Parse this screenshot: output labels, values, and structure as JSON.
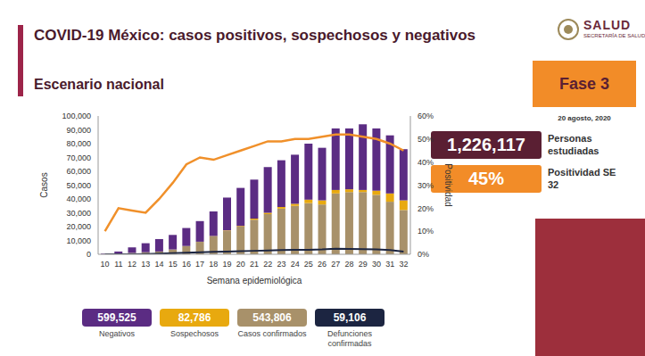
{
  "chart_data": {
    "type": "bar",
    "title": "COVID-19 México: casos positivos, sospechosos y negativos",
    "subtitle": "Escenario nacional",
    "x_label": "Semana epidemiológica",
    "y_label": "Casos",
    "y2_label": "Positividad",
    "stacked": true,
    "grid": false,
    "categories": [
      "10",
      "11",
      "12",
      "13",
      "14",
      "15",
      "16",
      "17",
      "18",
      "19",
      "20",
      "21",
      "22",
      "23",
      "24",
      "25",
      "26",
      "27",
      "28",
      "29",
      "30",
      "31",
      "32"
    ],
    "series": [
      {
        "name": "Negativos",
        "type": "bar",
        "color": "#5b2c83",
        "total": "599,525",
        "values": [
          500,
          1900,
          4000,
          6500,
          9000,
          10500,
          13000,
          14900,
          17800,
          23700,
          27500,
          28200,
          33000,
          33800,
          35500,
          40500,
          38000,
          44500,
          44000,
          47500,
          45000,
          42000,
          37000
        ]
      },
      {
        "name": "Sospechosos",
        "type": "bar",
        "color": "#e8a90f",
        "total": "82,786",
        "values": [
          0,
          0,
          0,
          0,
          0,
          0,
          0,
          100,
          200,
          300,
          500,
          800,
          1000,
          1200,
          1500,
          2500,
          3000,
          2500,
          2000,
          1500,
          3000,
          6000,
          7000
        ]
      },
      {
        "name": "Casos confirmados",
        "type": "bar",
        "color": "#a8916a",
        "total": "543,806",
        "values": [
          0,
          100,
          1000,
          1500,
          2000,
          3500,
          6000,
          9000,
          13000,
          17000,
          20000,
          25000,
          29000,
          33000,
          35000,
          37000,
          36000,
          44000,
          45000,
          45000,
          43000,
          38000,
          32000
        ]
      },
      {
        "name": "Defunciones confirmadas",
        "type": "line",
        "color": "#1c2541",
        "total": "59,106",
        "values": [
          0,
          0,
          50,
          200,
          500,
          800,
          1200,
          1500,
          1800,
          2000,
          2200,
          2500,
          2800,
          3000,
          3200,
          3300,
          3500,
          4000,
          3900,
          3700,
          3500,
          3000,
          2000
        ]
      },
      {
        "name": "Positividad",
        "type": "line",
        "axis": "y2",
        "color": "#f0902a",
        "values": [
          10,
          20,
          19,
          18,
          24,
          31,
          39,
          42,
          41,
          43,
          45,
          47,
          49,
          49,
          50,
          50,
          51,
          52,
          52,
          51,
          50,
          48,
          45
        ]
      }
    ],
    "ylim": [
      0,
      100000
    ],
    "yticks": [
      0,
      {
        "value": 10000,
        "label": "10,000"
      },
      {
        "value": 20000,
        "label": "20,000"
      },
      {
        "value": 30000,
        "label": "30,000"
      },
      {
        "value": 40000,
        "label": "40,000"
      },
      {
        "value": 50000,
        "label": "50,000"
      },
      {
        "value": 60000,
        "label": "60,000"
      },
      {
        "value": 70000,
        "label": "70,000"
      },
      {
        "value": 80000,
        "label": "80,000"
      },
      {
        "value": 90000,
        "label": "90,000"
      },
      {
        "value": 100000,
        "label": "100,000"
      }
    ],
    "y2lim": [
      0,
      60
    ],
    "y2ticks": [
      {
        "value": 0,
        "label": "0%"
      },
      {
        "value": 10,
        "label": "10%"
      },
      {
        "value": 20,
        "label": "20%"
      },
      {
        "value": 30,
        "label": "30%"
      },
      {
        "value": 40,
        "label": "40%"
      },
      {
        "value": 50,
        "label": "50%"
      },
      {
        "value": 60,
        "label": "60%"
      }
    ]
  },
  "header": {
    "logo": "SALUD",
    "logo_sub": "SECRETARÍA DE SALUD",
    "phase": "Fase 3",
    "date": "20 agosto, 2020"
  },
  "stats": [
    {
      "value": "1,226,117",
      "label": "Personas estudiadas",
      "color": "#5a1f33"
    },
    {
      "value": "45%",
      "label": "Positividad SE 32",
      "color": "#f28c28"
    }
  ]
}
